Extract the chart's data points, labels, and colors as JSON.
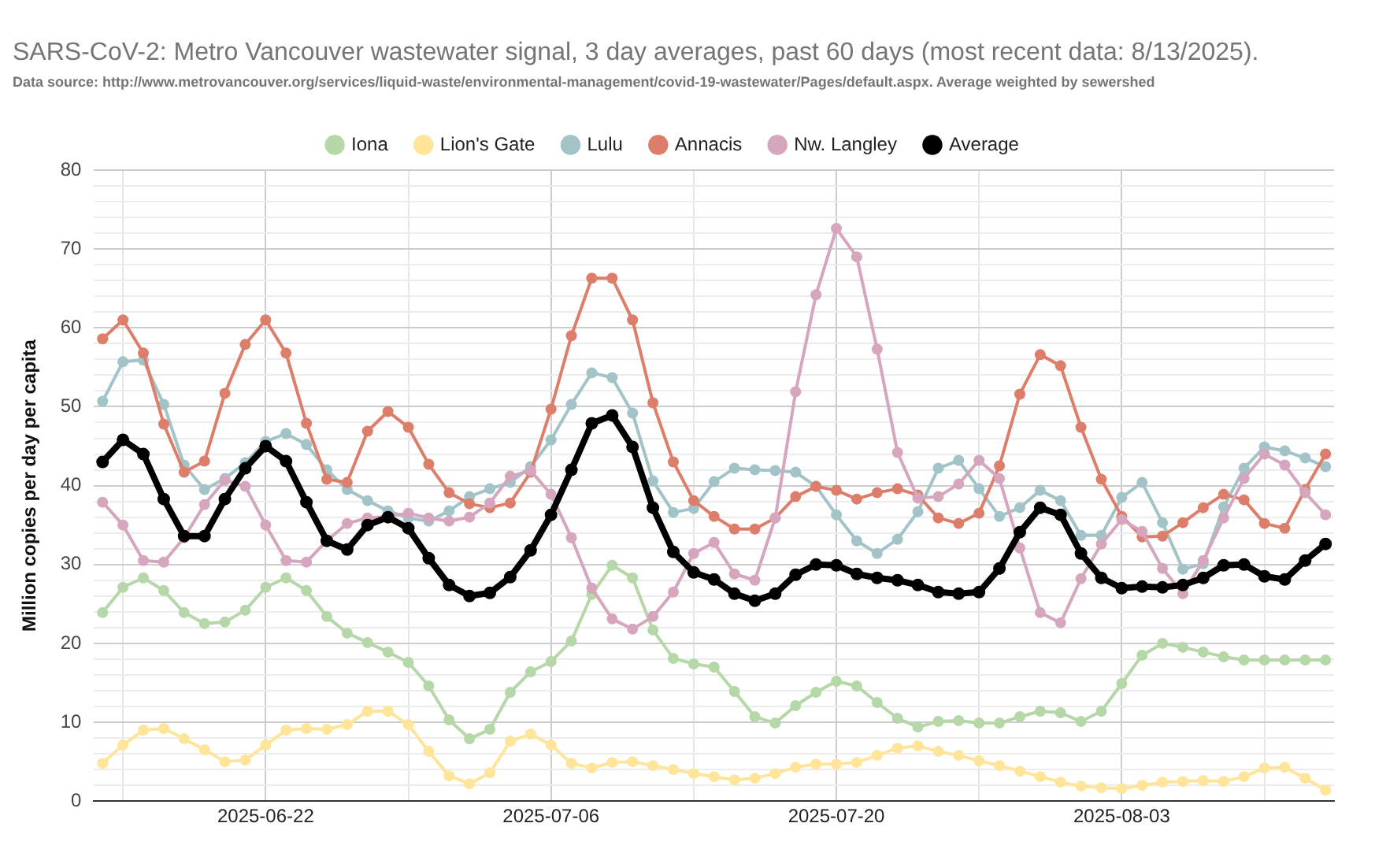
{
  "chart_data": {
    "type": "line",
    "title": "SARS-CoV-2: Metro Vancouver wastewater signal, 3 day averages, past 60 days (most recent data: 8/13/2025).",
    "subtitle": "Data source: http://www.metrovancouver.org/services/liquid-waste/environmental-management/covid-19-wastewater/Pages/default.aspx. Average weighted by sewershed",
    "ylabel": "Million copies per day per capita",
    "x": [
      "2025-06-14",
      "2025-06-15",
      "2025-06-16",
      "2025-06-17",
      "2025-06-18",
      "2025-06-19",
      "2025-06-20",
      "2025-06-21",
      "2025-06-22",
      "2025-06-23",
      "2025-06-24",
      "2025-06-25",
      "2025-06-26",
      "2025-06-27",
      "2025-06-28",
      "2025-06-29",
      "2025-06-30",
      "2025-07-01",
      "2025-07-02",
      "2025-07-03",
      "2025-07-04",
      "2025-07-05",
      "2025-07-06",
      "2025-07-07",
      "2025-07-08",
      "2025-07-09",
      "2025-07-10",
      "2025-07-11",
      "2025-07-12",
      "2025-07-13",
      "2025-07-14",
      "2025-07-15",
      "2025-07-16",
      "2025-07-17",
      "2025-07-18",
      "2025-07-19",
      "2025-07-20",
      "2025-07-21",
      "2025-07-22",
      "2025-07-23",
      "2025-07-24",
      "2025-07-25",
      "2025-07-26",
      "2025-07-27",
      "2025-07-28",
      "2025-07-29",
      "2025-07-30",
      "2025-07-31",
      "2025-08-01",
      "2025-08-02",
      "2025-08-03",
      "2025-08-04",
      "2025-08-05",
      "2025-08-06",
      "2025-08-07",
      "2025-08-08",
      "2025-08-09",
      "2025-08-10",
      "2025-08-11",
      "2025-08-12",
      "2025-08-13"
    ],
    "series": [
      {
        "name": "Iona",
        "color": "#b6d7a8",
        "values": [
          23.9,
          27.1,
          28.3,
          26.7,
          23.9,
          22.5,
          22.7,
          24.2,
          27.1,
          28.3,
          26.7,
          23.4,
          21.3,
          20.1,
          18.9,
          17.6,
          14.6,
          10.3,
          7.9,
          9.1,
          13.8,
          16.4,
          17.7,
          20.3,
          26.2,
          29.9,
          28.3,
          21.7,
          18.1,
          17.4,
          17.0,
          13.9,
          10.7,
          9.9,
          12.1,
          13.8,
          15.2,
          14.6,
          12.5,
          10.5,
          9.4,
          10.1,
          10.2,
          9.9,
          9.9,
          10.7,
          11.4,
          11.2,
          10.1,
          11.4,
          14.9,
          18.5,
          20.0,
          19.5,
          18.9,
          18.3,
          17.9,
          17.9,
          17.9,
          17.9,
          17.9
        ]
      },
      {
        "name": "Lion's Gate",
        "color": "#ffe599",
        "values": [
          4.8,
          7.1,
          9.0,
          9.2,
          7.9,
          6.5,
          5.0,
          5.2,
          7.1,
          9.0,
          9.2,
          9.1,
          9.7,
          11.4,
          11.4,
          9.7,
          6.3,
          3.2,
          2.2,
          3.6,
          7.6,
          8.5,
          7.1,
          4.8,
          4.2,
          4.9,
          5.0,
          4.5,
          4.0,
          3.5,
          3.1,
          2.7,
          2.9,
          3.5,
          4.3,
          4.7,
          4.7,
          4.9,
          5.8,
          6.7,
          7.0,
          6.3,
          5.8,
          5.1,
          4.5,
          3.8,
          3.1,
          2.4,
          1.9,
          1.7,
          1.6,
          2.0,
          2.4,
          2.5,
          2.6,
          2.5,
          3.1,
          4.2,
          4.3,
          2.9,
          1.4
        ]
      },
      {
        "name": "Lulu",
        "color": "#a2c4c9",
        "values": [
          50.7,
          55.7,
          55.9,
          50.3,
          42.6,
          39.5,
          40.9,
          42.9,
          45.6,
          46.6,
          45.2,
          42.0,
          39.5,
          38.1,
          36.8,
          35.9,
          35.5,
          36.8,
          38.6,
          39.6,
          40.4,
          42.4,
          45.8,
          50.3,
          54.3,
          53.7,
          49.2,
          40.6,
          36.6,
          37.1,
          40.5,
          42.2,
          42.0,
          41.9,
          41.7,
          39.9,
          36.3,
          33.0,
          31.4,
          33.2,
          36.7,
          42.2,
          43.2,
          39.6,
          36.1,
          37.2,
          39.4,
          38.1,
          33.7,
          33.7,
          38.5,
          40.4,
          35.3,
          29.4,
          30.1,
          37.3,
          42.2,
          44.9,
          44.4,
          43.5,
          42.4
        ]
      },
      {
        "name": "Annacis",
        "color": "#dd7e6b",
        "values": [
          58.6,
          61.0,
          56.8,
          47.8,
          41.7,
          43.1,
          51.7,
          57.9,
          61.0,
          56.8,
          47.9,
          40.8,
          40.4,
          46.9,
          49.4,
          47.4,
          42.7,
          39.1,
          37.7,
          37.2,
          37.8,
          41.7,
          49.7,
          59.0,
          66.3,
          66.3,
          61.0,
          50.5,
          43.0,
          38.1,
          36.1,
          34.5,
          34.5,
          35.9,
          38.6,
          39.9,
          39.4,
          38.3,
          39.1,
          39.6,
          38.8,
          35.9,
          35.2,
          36.5,
          42.5,
          51.6,
          56.6,
          55.2,
          47.4,
          40.8,
          36.1,
          33.5,
          33.6,
          35.3,
          37.2,
          38.9,
          38.2,
          35.2,
          34.6,
          39.5,
          44.0
        ]
      },
      {
        "name": "Nw. Langley",
        "color": "#d5a6bd",
        "values": [
          37.9,
          35.0,
          30.5,
          30.3,
          33.4,
          37.6,
          40.7,
          39.9,
          35.0,
          30.5,
          30.3,
          33.0,
          35.2,
          35.9,
          36.1,
          36.5,
          35.9,
          35.5,
          36.0,
          37.8,
          41.2,
          41.9,
          38.9,
          33.4,
          27.0,
          23.1,
          21.8,
          23.4,
          26.5,
          31.4,
          32.8,
          28.8,
          28.0,
          35.9,
          51.9,
          64.2,
          72.6,
          69.0,
          57.3,
          44.2,
          38.4,
          38.6,
          40.2,
          43.2,
          40.9,
          32.1,
          23.9,
          22.6,
          28.2,
          32.6,
          35.7,
          34.2,
          29.5,
          26.3,
          30.5,
          35.9,
          40.9,
          44.0,
          42.6,
          39.1,
          36.3
        ]
      },
      {
        "name": "Average",
        "color": "#000000",
        "values": [
          43.0,
          45.8,
          44.0,
          38.3,
          33.6,
          33.6,
          38.3,
          42.2,
          45.0,
          43.1,
          37.9,
          33.0,
          31.9,
          35.0,
          36.0,
          34.6,
          30.8,
          27.4,
          26.0,
          26.4,
          28.4,
          31.8,
          36.3,
          42.0,
          47.9,
          48.9,
          44.9,
          37.2,
          31.6,
          29.0,
          28.1,
          26.3,
          25.4,
          26.3,
          28.7,
          30.0,
          29.9,
          28.8,
          28.3,
          28.0,
          27.4,
          26.5,
          26.3,
          26.5,
          29.5,
          34.1,
          37.2,
          36.3,
          31.4,
          28.3,
          27.0,
          27.2,
          27.1,
          27.4,
          28.3,
          29.9,
          30.0,
          28.5,
          28.1,
          30.5,
          32.6
        ]
      }
    ],
    "xlim": [
      "2025-06-13T14:00",
      "2025-08-13T10:00"
    ],
    "xticks": [
      {
        "value": "2025-06-15",
        "label": null
      },
      {
        "value": "2025-06-22",
        "label": "2025-06-22"
      },
      {
        "value": "2025-06-29",
        "label": null
      },
      {
        "value": "2025-07-06",
        "label": "2025-07-06"
      },
      {
        "value": "2025-07-13",
        "label": null
      },
      {
        "value": "2025-07-20",
        "label": "2025-07-20"
      },
      {
        "value": "2025-07-27",
        "label": null
      },
      {
        "value": "2025-08-03",
        "label": "2025-08-03"
      },
      {
        "value": "2025-08-10",
        "label": null
      }
    ],
    "ylim": [
      0,
      80
    ],
    "yticks": [
      0,
      {
        "value": 2,
        "label": null
      },
      {
        "value": 4,
        "label": null
      },
      {
        "value": 6,
        "label": null
      },
      {
        "value": 8,
        "label": null
      },
      10,
      {
        "value": 12,
        "label": null
      },
      {
        "value": 14,
        "label": null
      },
      {
        "value": 16,
        "label": null
      },
      {
        "value": 18,
        "label": null
      },
      20,
      {
        "value": 22,
        "label": null
      },
      {
        "value": 24,
        "label": null
      },
      {
        "value": 26,
        "label": null
      },
      {
        "value": 28,
        "label": null
      },
      30,
      {
        "value": 32,
        "label": null
      },
      {
        "value": 34,
        "label": null
      },
      {
        "value": 36,
        "label": null
      },
      {
        "value": 38,
        "label": null
      },
      40,
      {
        "value": 42,
        "label": null
      },
      {
        "value": 44,
        "label": null
      },
      {
        "value": 46,
        "label": null
      },
      {
        "value": 48,
        "label": null
      },
      50,
      {
        "value": 52,
        "label": null
      },
      {
        "value": 54,
        "label": null
      },
      {
        "value": 56,
        "label": null
      },
      {
        "value": 58,
        "label": null
      },
      60,
      {
        "value": 62,
        "label": null
      },
      {
        "value": 64,
        "label": null
      },
      {
        "value": 66,
        "label": null
      },
      {
        "value": 68,
        "label": null
      },
      70,
      {
        "value": 72,
        "label": null
      },
      {
        "value": 74,
        "label": null
      },
      {
        "value": 76,
        "label": null
      },
      {
        "value": 78,
        "label": null
      },
      80
    ],
    "grid": true,
    "legend": "top",
    "marker": "circle",
    "line_style": "solid"
  }
}
